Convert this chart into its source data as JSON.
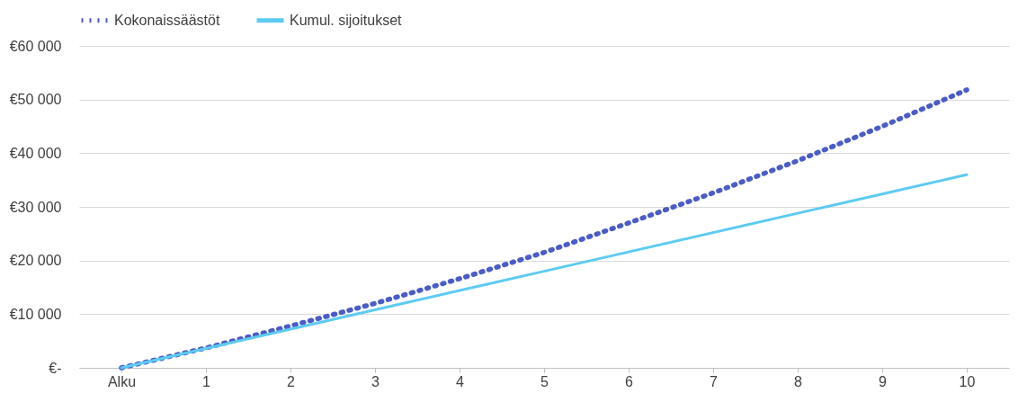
{
  "chart_data": {
    "type": "line",
    "categories": [
      "Alku",
      "1",
      "2",
      "3",
      "4",
      "5",
      "6",
      "7",
      "8",
      "9",
      "10"
    ],
    "series": [
      {
        "name": "Kokonaissäästöt",
        "color": "#4a5cc7",
        "line_style": "dotted",
        "values": [
          0,
          3700,
          7800,
          12000,
          16600,
          21500,
          27000,
          32600,
          38600,
          45000,
          51800
        ]
      },
      {
        "name": "Kumul. sijoitukset",
        "color": "#5ccbf2",
        "line_style": "solid",
        "values": [
          0,
          3600,
          7200,
          10800,
          14400,
          18000,
          21600,
          25200,
          28800,
          32400,
          36000
        ]
      }
    ],
    "ylim": [
      0,
      60000
    ],
    "yticks": [
      {
        "value": 0,
        "label": "€-"
      },
      {
        "value": 10000,
        "label": "€10 000"
      },
      {
        "value": 20000,
        "label": "€20 000"
      },
      {
        "value": 30000,
        "label": "€30 000"
      },
      {
        "value": 40000,
        "label": "€40 000"
      },
      {
        "value": 50000,
        "label": "€50 000"
      },
      {
        "value": 60000,
        "label": "€60 000"
      }
    ],
    "grid": "y",
    "legend": "top",
    "marker": "none"
  }
}
